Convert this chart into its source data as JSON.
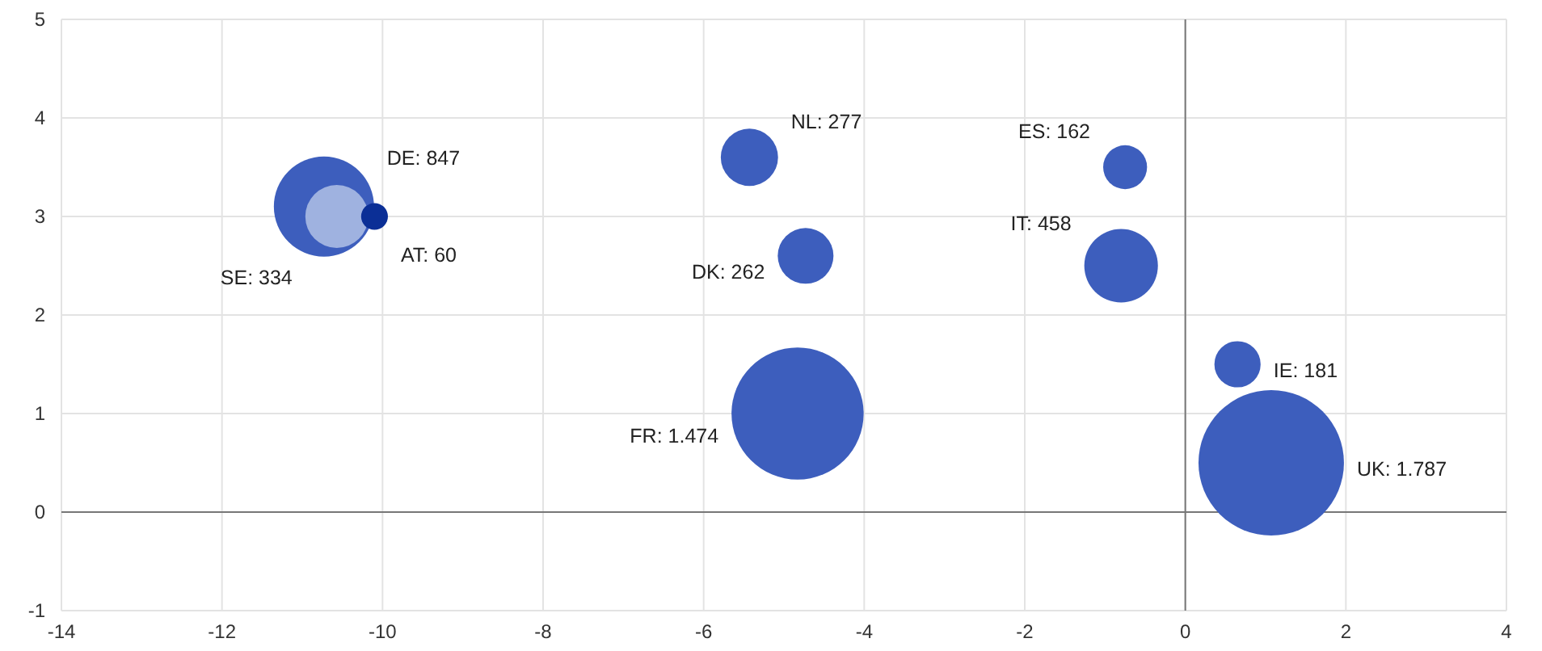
{
  "chart_data": {
    "type": "bubble",
    "x": [
      -10.73,
      -10.57,
      -10.1,
      -5.43,
      -4.73,
      -4.83,
      -0.75,
      -0.8,
      0.65,
      1.07
    ],
    "values": [
      3.1,
      3.0,
      3.0,
      3.6,
      2.6,
      1.0,
      3.5,
      2.5,
      1.5,
      0.5
    ],
    "sizes": [
      0.474,
      0.187,
      0.034,
      0.155,
      0.147,
      0.825,
      0.091,
      0.256,
      0.101,
      1
    ],
    "colors": [
      "#3d5ebd",
      "#9fb2e0",
      "#0b2f96",
      "#3d5ebd",
      "#3d5ebd",
      "#3d5ebd",
      "#3d5ebd",
      "#3d5ebd",
      "#3d5ebd",
      "#3d5ebd"
    ],
    "annotations": [
      "DE: 847",
      "SE: 334",
      "AT: 60",
      "NL: 277",
      "DK: 262",
      "FR: 1.474",
      "ES: 162",
      "IT: 458",
      "IE: 181",
      "UK: 1.787"
    ],
    "xlim": [
      -14,
      4
    ],
    "xticks": [
      -14,
      -12,
      -10,
      -8,
      -6,
      -4,
      -2,
      0,
      2,
      4
    ],
    "ylim": [
      -1,
      5
    ],
    "yticks": [
      -1,
      0,
      1,
      2,
      3,
      4,
      5
    ],
    "grid": true
  }
}
